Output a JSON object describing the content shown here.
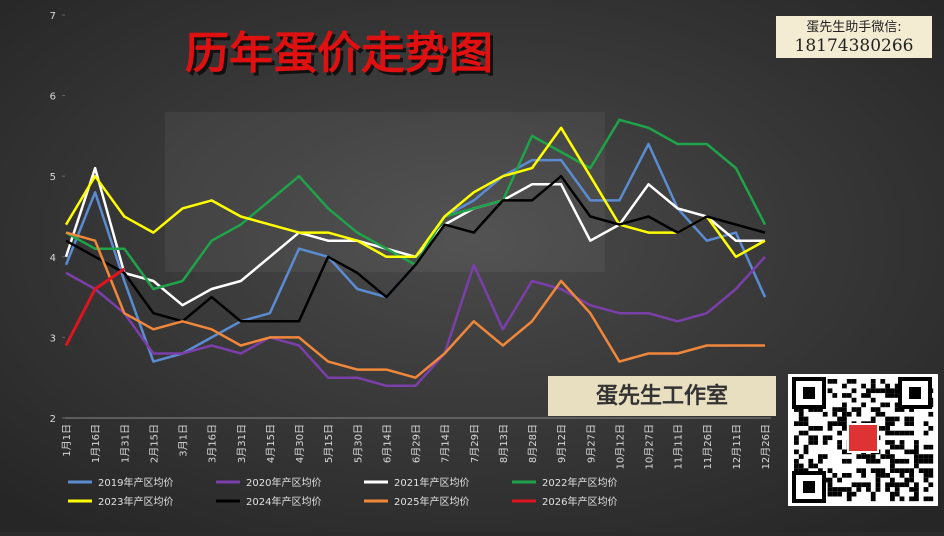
{
  "chart_data": {
    "type": "line",
    "title": "历年蛋价走势图",
    "contact_label": "蛋先生助手微信:",
    "contact_number": "18174380266",
    "badge": "蛋先生工作室",
    "categories": [
      "1月1日",
      "1月16日",
      "1月31日",
      "2月15日",
      "3月1日",
      "3月16日",
      "3月31日",
      "4月15日",
      "4月30日",
      "5月15日",
      "5月30日",
      "6月14日",
      "6月29日",
      "7月14日",
      "7月29日",
      "8月13日",
      "8月28日",
      "9月12日",
      "9月27日",
      "10月12日",
      "10月27日",
      "11月11日",
      "11月26日",
      "12月11日",
      "12月26日"
    ],
    "ylim": [
      2,
      7
    ],
    "yticks": [
      2,
      3,
      4,
      5,
      6,
      7
    ],
    "grid": false,
    "series": [
      {
        "name": "2019年产区均价",
        "color": "#5b8bd0",
        "values": [
          3.9,
          4.8,
          3.7,
          2.7,
          2.8,
          3.0,
          3.2,
          3.3,
          4.1,
          4.0,
          3.6,
          3.5,
          3.9,
          4.5,
          4.7,
          5.0,
          5.2,
          5.2,
          4.7,
          4.7,
          5.4,
          4.6,
          4.2,
          4.3,
          3.5
        ]
      },
      {
        "name": "2020年产区均价",
        "color": "#7a3fa8",
        "values": [
          3.8,
          3.6,
          3.3,
          2.8,
          2.8,
          2.9,
          2.8,
          3.0,
          2.9,
          2.5,
          2.5,
          2.4,
          2.4,
          2.8,
          3.9,
          3.1,
          3.7,
          3.6,
          3.4,
          3.3,
          3.3,
          3.2,
          3.3,
          3.6,
          4.0
        ]
      },
      {
        "name": "2021年产区均价",
        "color": "#ffffff",
        "values": [
          4.0,
          5.1,
          3.8,
          3.7,
          3.4,
          3.6,
          3.7,
          4.0,
          4.3,
          4.2,
          4.2,
          4.1,
          4.0,
          4.4,
          4.6,
          4.7,
          4.9,
          4.9,
          4.2,
          4.4,
          4.9,
          4.6,
          4.5,
          4.2,
          4.2
        ]
      },
      {
        "name": "2022年产区均价",
        "color": "#1fa34a",
        "values": [
          4.3,
          4.1,
          4.1,
          3.6,
          3.7,
          4.2,
          4.4,
          4.7,
          5.0,
          4.6,
          4.3,
          4.1,
          3.9,
          4.5,
          4.6,
          4.7,
          5.5,
          5.3,
          5.1,
          5.7,
          5.6,
          5.4,
          5.4,
          5.1,
          4.4
        ]
      },
      {
        "name": "2023年产区均价",
        "color": "#ffff00",
        "values": [
          4.4,
          5.0,
          4.5,
          4.3,
          4.6,
          4.7,
          4.5,
          4.4,
          4.3,
          4.3,
          4.2,
          4.0,
          4.0,
          4.5,
          4.8,
          5.0,
          5.1,
          5.6,
          5.0,
          4.4,
          4.3,
          4.3,
          4.5,
          4.0,
          4.2
        ]
      },
      {
        "name": "2024年产区均价",
        "color": "#000000",
        "values": [
          4.2,
          4.0,
          3.8,
          3.3,
          3.2,
          3.5,
          3.2,
          3.2,
          3.2,
          4.0,
          3.8,
          3.5,
          3.9,
          4.4,
          4.3,
          4.7,
          4.7,
          5.0,
          4.5,
          4.4,
          4.5,
          4.3,
          4.5,
          4.4,
          4.3
        ]
      },
      {
        "name": "2025年产区均价",
        "color": "#f0873a",
        "values": [
          4.3,
          4.2,
          3.3,
          3.1,
          3.2,
          3.1,
          2.9,
          3.0,
          3.0,
          2.7,
          2.6,
          2.6,
          2.5,
          2.8,
          3.2,
          2.9,
          3.2,
          3.7,
          3.3,
          2.7,
          2.8,
          2.8,
          2.9,
          2.9,
          2.9
        ]
      },
      {
        "name": "2026年产区均价",
        "color": "#e0141e",
        "values": [
          2.9,
          3.6,
          3.85,
          null,
          null,
          null,
          null,
          null,
          null,
          null,
          null,
          null,
          null,
          null,
          null,
          null,
          null,
          null,
          null,
          null,
          null,
          null,
          null,
          null,
          null
        ]
      }
    ]
  }
}
